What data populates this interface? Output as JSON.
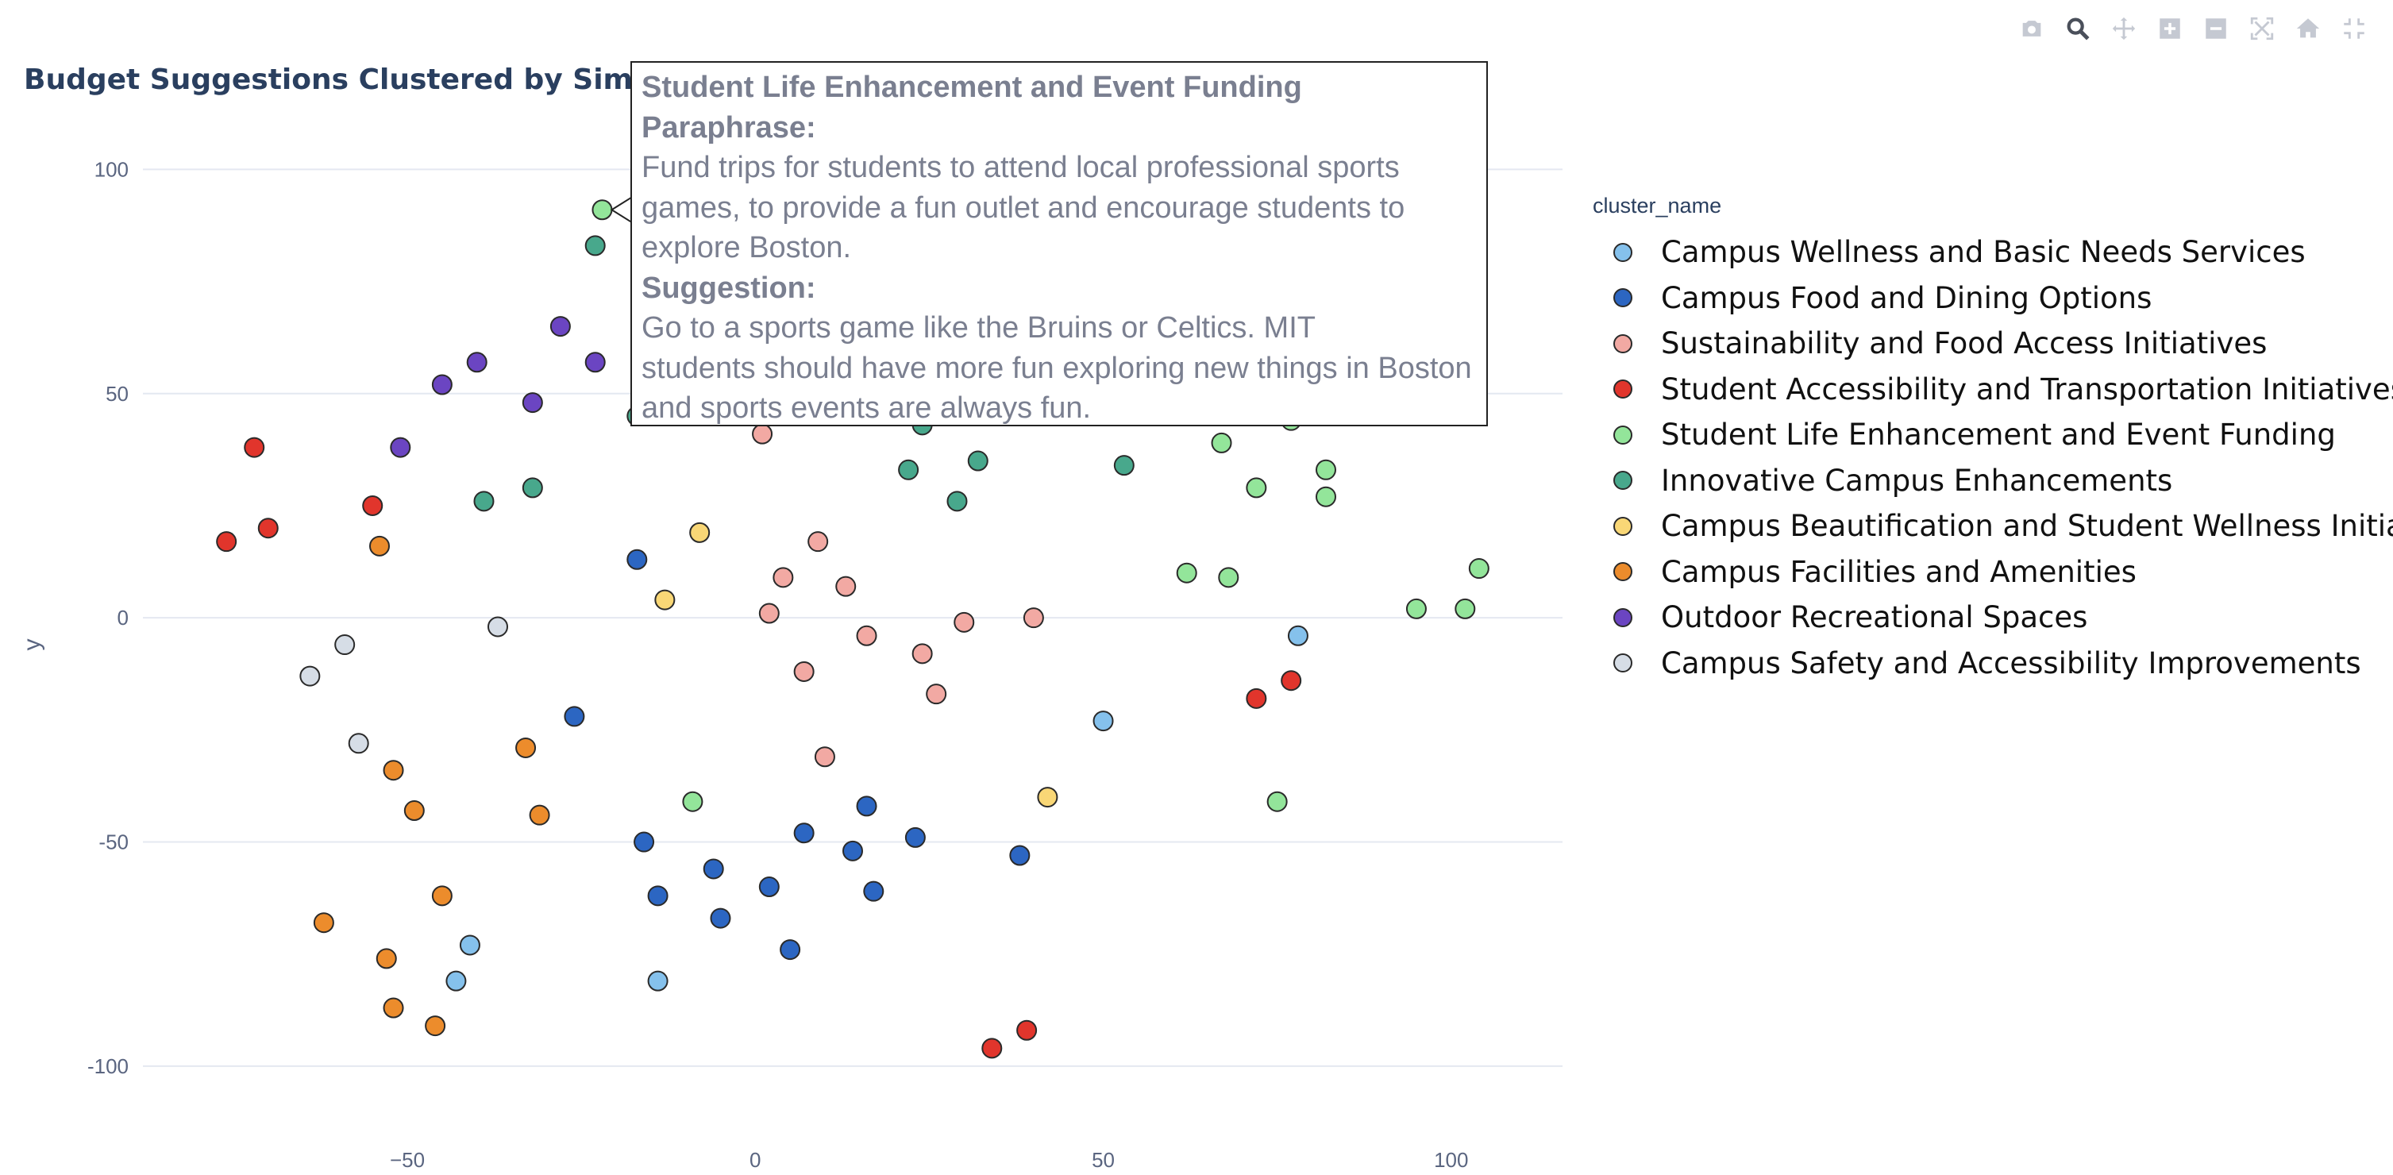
{
  "title": "Budget Suggestions Clustered by Similarity",
  "modebar": [
    "camera-icon",
    "zoom-icon",
    "pan-icon",
    "zoom-in-icon",
    "zoom-out-icon",
    "autoscale-icon",
    "home-icon",
    "fullscreen-icon"
  ],
  "legend": {
    "title": "cluster_name",
    "items": [
      {
        "label": "Campus Wellness and Basic Needs Services",
        "color": "#85c1ec"
      },
      {
        "label": "Campus Food and Dining Options",
        "color": "#2c66c2"
      },
      {
        "label": "Sustainability and Food Access Initiatives",
        "color": "#f2a9a3"
      },
      {
        "label": "Student Accessibility and Transportation Initiatives",
        "color": "#e1352c"
      },
      {
        "label": "Student Life Enhancement and Event Funding",
        "color": "#93e59a"
      },
      {
        "label": "Innovative Campus Enhancements",
        "color": "#48a88c"
      },
      {
        "label": "Campus Beautification and Student Wellness Initiatives",
        "color": "#f9d776"
      },
      {
        "label": "Campus Facilities and Amenities",
        "color": "#ec8c2c"
      },
      {
        "label": "Outdoor Recreational Spaces",
        "color": "#6b45c2"
      },
      {
        "label": "Campus Safety and Accessibility Improvements",
        "color": "#d6dde6"
      }
    ]
  },
  "tooltip": {
    "heading": "Student Life Enhancement and Event Funding",
    "paraphrase_label": "Paraphrase:",
    "paraphrase_lines": [
      "Fund trips for students to attend local professional sports",
      "games, to provide a fun outlet and encourage students to",
      "explore Boston."
    ],
    "suggestion_label": "Suggestion:",
    "suggestion_lines": [
      "Go to a sports game like the Bruins or Celtics. MIT",
      "students should have more fun exploring new things in Boston",
      "and sports events are always fun."
    ]
  },
  "chart_data": {
    "type": "scatter",
    "title": "Budget Suggestions Clustered by Similarity",
    "xlabel": "",
    "ylabel": "y",
    "xlim": [
      -88,
      116
    ],
    "ylim": [
      -114,
      113
    ],
    "xticks": [
      -50,
      0,
      50,
      100
    ],
    "yticks": [
      -100,
      -50,
      0,
      50,
      100
    ],
    "grid": "y-only",
    "legend_position": "right",
    "series": [
      {
        "name": "Campus Wellness and Basic Needs Services",
        "color": "#85c1ec",
        "points": [
          [
            -41,
            -73
          ],
          [
            -43,
            -81
          ],
          [
            -14,
            -81
          ],
          [
            50,
            -23
          ],
          [
            78,
            -4
          ]
        ]
      },
      {
        "name": "Campus Food and Dining Options",
        "color": "#2c66c2",
        "points": [
          [
            -17,
            13
          ],
          [
            -26,
            -22
          ],
          [
            -16,
            -50
          ],
          [
            -14,
            -62
          ],
          [
            -6,
            -56
          ],
          [
            -5,
            -67
          ],
          [
            2,
            -60
          ],
          [
            5,
            -74
          ],
          [
            7,
            -48
          ],
          [
            14,
            -52
          ],
          [
            16,
            -42
          ],
          [
            17,
            -61
          ],
          [
            23,
            -49
          ],
          [
            38,
            -53
          ]
        ]
      },
      {
        "name": "Sustainability and Food Access Initiatives",
        "color": "#f2a9a3",
        "points": [
          [
            1,
            41
          ],
          [
            2,
            1
          ],
          [
            4,
            9
          ],
          [
            7,
            -12
          ],
          [
            9,
            17
          ],
          [
            10,
            -31
          ],
          [
            13,
            7
          ],
          [
            16,
            -4
          ],
          [
            24,
            -8
          ],
          [
            26,
            -17
          ],
          [
            30,
            -1
          ],
          [
            40,
            0
          ]
        ]
      },
      {
        "name": "Student Accessibility and Transportation Initiatives",
        "color": "#e1352c",
        "points": [
          [
            -76,
            17
          ],
          [
            -72,
            38
          ],
          [
            -70,
            20
          ],
          [
            -55,
            25
          ],
          [
            34,
            -96
          ],
          [
            39,
            -92
          ],
          [
            72,
            -18
          ],
          [
            77,
            -14
          ]
        ]
      },
      {
        "name": "Student Life Enhancement and Event Funding",
        "color": "#93e59a",
        "points": [
          [
            -22,
            91
          ],
          [
            -9,
            -41
          ],
          [
            62,
            10
          ],
          [
            67,
            39
          ],
          [
            68,
            9
          ],
          [
            72,
            29
          ],
          [
            75,
            -41
          ],
          [
            77,
            44
          ],
          [
            82,
            27
          ],
          [
            82,
            33
          ],
          [
            95,
            2
          ],
          [
            102,
            2
          ],
          [
            104,
            11
          ]
        ]
      },
      {
        "name": "Innovative Campus Enhancements",
        "color": "#48a88c",
        "points": [
          [
            -23,
            83
          ],
          [
            -17,
            45
          ],
          [
            -39,
            26
          ],
          [
            -32,
            29
          ],
          [
            22,
            33
          ],
          [
            24,
            43
          ],
          [
            29,
            26
          ],
          [
            32,
            35
          ],
          [
            53,
            34
          ]
        ]
      },
      {
        "name": "Campus Beautification and Student Wellness Initiatives",
        "color": "#f9d776",
        "points": [
          [
            -8,
            19
          ],
          [
            -13,
            4
          ],
          [
            42,
            -40
          ]
        ]
      },
      {
        "name": "Campus Facilities and Amenities",
        "color": "#ec8c2c",
        "points": [
          [
            -54,
            16
          ],
          [
            -52,
            -34
          ],
          [
            -49,
            -43
          ],
          [
            -33,
            -29
          ],
          [
            -31,
            -44
          ],
          [
            -45,
            -62
          ],
          [
            -62,
            -68
          ],
          [
            -53,
            -76
          ],
          [
            -52,
            -87
          ],
          [
            -46,
            -91
          ]
        ]
      },
      {
        "name": "Outdoor Recreational Spaces",
        "color": "#6b45c2",
        "points": [
          [
            -51,
            38
          ],
          [
            -45,
            52
          ],
          [
            -40,
            57
          ],
          [
            -32,
            48
          ],
          [
            -28,
            65
          ],
          [
            -23,
            57
          ]
        ]
      },
      {
        "name": "Campus Safety and Accessibility Improvements",
        "color": "#d6dde6",
        "points": [
          [
            -64,
            -13
          ],
          [
            -59,
            -6
          ],
          [
            -57,
            -28
          ],
          [
            -37,
            -2
          ]
        ]
      }
    ]
  }
}
